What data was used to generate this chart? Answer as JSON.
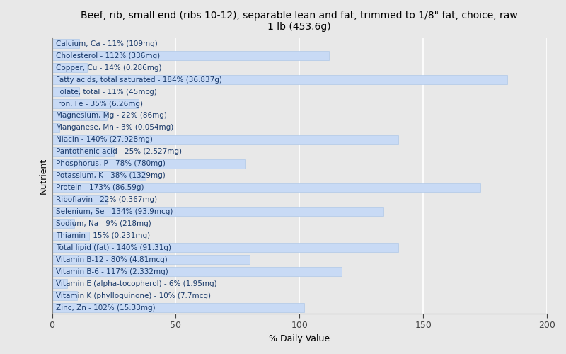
{
  "title": "Beef, rib, small end (ribs 10-12), separable lean and fat, trimmed to 1/8\" fat, choice, raw\n1 lb (453.6g)",
  "xlabel": "% Daily Value",
  "ylabel": "Nutrient",
  "xlim": [
    0,
    200
  ],
  "xticks": [
    0,
    50,
    100,
    150,
    200
  ],
  "bar_color": "#c8daf5",
  "bar_edge_color": "#b0c8e8",
  "background_color": "#e8e8e8",
  "plot_bg_color": "#e8e8e8",
  "text_color": "#1a3a6a",
  "nutrients": [
    {
      "label": "Calcium, Ca - 11% (109mg)",
      "value": 11
    },
    {
      "label": "Cholesterol - 112% (336mg)",
      "value": 112
    },
    {
      "label": "Copper, Cu - 14% (0.286mg)",
      "value": 14
    },
    {
      "label": "Fatty acids, total saturated - 184% (36.837g)",
      "value": 184
    },
    {
      "label": "Folate, total - 11% (45mcg)",
      "value": 11
    },
    {
      "label": "Iron, Fe - 35% (6.26mg)",
      "value": 35
    },
    {
      "label": "Magnesium, Mg - 22% (86mg)",
      "value": 22
    },
    {
      "label": "Manganese, Mn - 3% (0.054mg)",
      "value": 3
    },
    {
      "label": "Niacin - 140% (27.928mg)",
      "value": 140
    },
    {
      "label": "Pantothenic acid - 25% (2.527mg)",
      "value": 25
    },
    {
      "label": "Phosphorus, P - 78% (780mg)",
      "value": 78
    },
    {
      "label": "Potassium, K - 38% (1329mg)",
      "value": 38
    },
    {
      "label": "Protein - 173% (86.59g)",
      "value": 173
    },
    {
      "label": "Riboflavin - 22% (0.367mg)",
      "value": 22
    },
    {
      "label": "Selenium, Se - 134% (93.9mcg)",
      "value": 134
    },
    {
      "label": "Sodium, Na - 9% (218mg)",
      "value": 9
    },
    {
      "label": "Thiamin - 15% (0.231mg)",
      "value": 15
    },
    {
      "label": "Total lipid (fat) - 140% (91.31g)",
      "value": 140
    },
    {
      "label": "Vitamin B-12 - 80% (4.81mcg)",
      "value": 80
    },
    {
      "label": "Vitamin B-6 - 117% (2.332mg)",
      "value": 117
    },
    {
      "label": "Vitamin E (alpha-tocopherol) - 6% (1.95mg)",
      "value": 6
    },
    {
      "label": "Vitamin K (phylloquinone) - 10% (7.7mcg)",
      "value": 10
    },
    {
      "label": "Zinc, Zn - 102% (15.33mg)",
      "value": 102
    }
  ],
  "title_fontsize": 10,
  "axis_label_fontsize": 9,
  "tick_fontsize": 9,
  "bar_label_fontsize": 7.5
}
